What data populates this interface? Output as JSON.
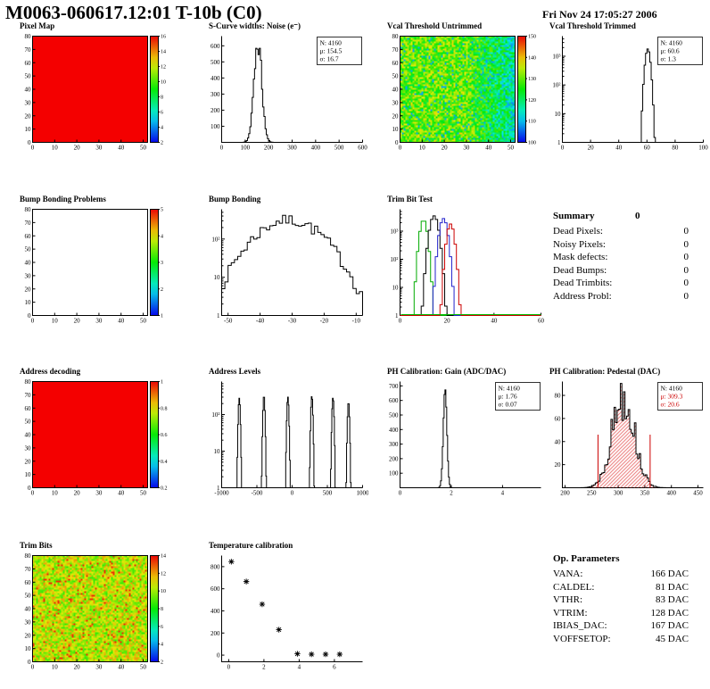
{
  "header": {
    "title": "M0063-060617.12:01 T-10b (C0)",
    "date": "Fri Nov 24 17:05:27 2006"
  },
  "summary": {
    "title": "Summary",
    "total": "0",
    "rows": [
      {
        "label": "Dead Pixels:",
        "value": "0"
      },
      {
        "label": "Noisy Pixels:",
        "value": "0"
      },
      {
        "label": "Mask defects:",
        "value": "0"
      },
      {
        "label": "Dead Bumps:",
        "value": "0"
      },
      {
        "label": "Dead Trimbits:",
        "value": "0"
      },
      {
        "label": "Address Probl:",
        "value": "0"
      }
    ]
  },
  "op_parameters": {
    "title": "Op. Parameters",
    "rows": [
      {
        "label": "VANA:",
        "value": "166 DAC"
      },
      {
        "label": "CALDEL:",
        "value": "81 DAC"
      },
      {
        "label": "VTHR:",
        "value": "83 DAC"
      },
      {
        "label": "VTRIM:",
        "value": "128 DAC"
      },
      {
        "label": "IBIAS_DAC:",
        "value": "167 DAC"
      },
      {
        "label": "VOFFSETOP:",
        "value": "45 DAC"
      }
    ]
  },
  "chart_data": [
    {
      "id": "pixel-map",
      "title": "Pixel Map",
      "type": "heatmap",
      "fill": "uniform",
      "color": "#f40000",
      "x_range": [
        0,
        52
      ],
      "y_range": [
        0,
        80
      ],
      "x_ticks": [
        0,
        10,
        20,
        30,
        40,
        50
      ],
      "y_ticks": [
        0,
        10,
        20,
        30,
        40,
        50,
        60,
        70,
        80
      ],
      "colorbar_ticks": [
        2,
        4,
        6,
        8,
        10,
        12,
        14,
        16
      ]
    },
    {
      "id": "scurve-noise",
      "title": "S-Curve widths: Noise (e⁻)",
      "type": "histogram",
      "x_range": [
        0,
        600
      ],
      "x_ticks": [
        0,
        100,
        200,
        300,
        400,
        500,
        600
      ],
      "y_range": [
        0,
        660
      ],
      "y_ticks": [
        100,
        200,
        300,
        400,
        500,
        600
      ],
      "bins": 120,
      "series": [
        {
          "color": "#000000",
          "mean": 154.5,
          "sigma": 16.7,
          "peak": 620,
          "ragged": 0.12,
          "seed": 11
        }
      ],
      "stats": {
        "rows": [
          {
            "text": "N: 4160",
            "color": "#000000"
          },
          {
            "text": "μ: 154.5",
            "color": "#000000"
          },
          {
            "text": "σ: 16.7",
            "color": "#000000"
          }
        ]
      }
    },
    {
      "id": "vcal-untrimmed",
      "title": "Vcal Threshold Untrimmed",
      "type": "heatmap",
      "fill": "noise",
      "noise": {
        "min": 0.42,
        "max": 0.78,
        "band_start": 0.55,
        "band_drop": 0.3,
        "speckle": 0.05,
        "speckle_v": 0.18,
        "seed": 5
      },
      "x_range": [
        0,
        52
      ],
      "y_range": [
        0,
        80
      ],
      "x_ticks": [
        0,
        10,
        20,
        30,
        40,
        50
      ],
      "y_ticks": [
        0,
        10,
        20,
        30,
        40,
        50,
        60,
        70,
        80
      ],
      "colorbar_ticks": [
        100,
        110,
        120,
        130,
        140,
        150
      ]
    },
    {
      "id": "vcal-trimmed",
      "title": "Vcal Threshold Trimmed",
      "type": "histogram",
      "ylog": true,
      "y_top": 5000,
      "x_range": [
        0,
        100
      ],
      "x_ticks": [
        0,
        20,
        40,
        60,
        80,
        100
      ],
      "bins": 100,
      "series": [
        {
          "color": "#000000",
          "mean": 60.6,
          "sigma": 1.3,
          "peak": 1800,
          "ragged": 0,
          "seed": 1
        }
      ],
      "stats": {
        "rows": [
          {
            "text": "N: 4160",
            "color": "#000000"
          },
          {
            "text": "μ: 60.6",
            "color": "#000000"
          },
          {
            "text": "σ: 1.3",
            "color": "#000000"
          }
        ]
      }
    },
    {
      "id": "bump-problems",
      "title": "Bump Bonding Problems",
      "type": "heatmap",
      "fill": "empty",
      "x_range": [
        0,
        52
      ],
      "y_range": [
        0,
        80
      ],
      "x_ticks": [
        0,
        10,
        20,
        30,
        40,
        50
      ],
      "y_ticks": [
        0,
        10,
        20,
        30,
        40,
        50,
        60,
        70,
        80
      ],
      "colorbar_ticks": [
        1,
        2,
        3,
        4,
        5
      ]
    },
    {
      "id": "bump-bonding",
      "title": "Bump Bonding",
      "type": "histogram",
      "ylog": true,
      "y_top": 600,
      "x_range": [
        -52,
        -8
      ],
      "x_ticks": [
        -50,
        -40,
        -30,
        -20,
        -10
      ],
      "bins": 44,
      "series": [
        {
          "color": "#000000",
          "mean": -31,
          "sigma": 7.5,
          "peak": 320,
          "ragged": 0.35,
          "seed": 7
        }
      ]
    },
    {
      "id": "trimbit-test",
      "title": "Trim Bit Test",
      "type": "histogram",
      "ylog": true,
      "y_top": 6000,
      "x_range": [
        0,
        60
      ],
      "x_ticks": [
        0,
        20,
        40,
        60
      ],
      "bins": 60,
      "baseline_color": "#00bb00",
      "series": [
        {
          "color": "#00aa00",
          "mean": 10,
          "sigma": 1.1,
          "peak": 2500,
          "ragged": 0,
          "seed": 2
        },
        {
          "color": "#000000",
          "mean": 14.5,
          "sigma": 1.3,
          "peak": 3500,
          "ragged": 0,
          "seed": 3
        },
        {
          "color": "#2222cc",
          "mean": 18.5,
          "sigma": 1.2,
          "peak": 2800,
          "ragged": 0,
          "seed": 4
        },
        {
          "color": "#cc0000",
          "mean": 21.5,
          "sigma": 1.1,
          "peak": 1800,
          "ragged": 0,
          "seed": 5
        }
      ]
    },
    {
      "id": "address-decoding",
      "title": "Address decoding",
      "type": "heatmap",
      "fill": "uniform",
      "color": "#f40000",
      "x_range": [
        0,
        52
      ],
      "y_range": [
        0,
        80
      ],
      "x_ticks": [
        0,
        10,
        20,
        30,
        40,
        50
      ],
      "y_ticks": [
        0,
        10,
        20,
        30,
        40,
        50,
        60,
        70,
        80
      ],
      "colorbar_ticks": [
        0.2,
        0.4,
        0.6,
        0.8,
        1
      ]
    },
    {
      "id": "address-levels",
      "title": "Address Levels",
      "type": "histogram",
      "ylog": true,
      "y_top": 800,
      "x_range": [
        -1000,
        1000
      ],
      "x_ticks": [
        -1000,
        -500,
        0,
        500,
        1000
      ],
      "bins": 220,
      "series": [
        {
          "color": "#000000",
          "mean": -750,
          "sigma": 10,
          "peak": 280,
          "ragged": 0,
          "seed": 1
        },
        {
          "color": "#000000",
          "mean": -400,
          "sigma": 10,
          "peak": 330,
          "ragged": 0,
          "seed": 1
        },
        {
          "color": "#000000",
          "mean": -60,
          "sigma": 10,
          "peak": 300,
          "ragged": 0,
          "seed": 1
        },
        {
          "color": "#000000",
          "mean": 280,
          "sigma": 10,
          "peak": 320,
          "ragged": 0,
          "seed": 1
        },
        {
          "color": "#000000",
          "mean": 580,
          "sigma": 10,
          "peak": 290,
          "ragged": 0,
          "seed": 1
        },
        {
          "color": "#000000",
          "mean": 800,
          "sigma": 10,
          "peak": 220,
          "ragged": 0,
          "seed": 1
        }
      ]
    },
    {
      "id": "ph-gain",
      "title": "PH Calibration: Gain (ADC/DAC)",
      "type": "histogram",
      "x_range": [
        0,
        5.5
      ],
      "x_ticks": [
        0,
        2,
        4
      ],
      "y_range": [
        0,
        730
      ],
      "y_ticks": [
        100,
        200,
        300,
        400,
        500,
        600,
        700
      ],
      "bins": 160,
      "series": [
        {
          "color": "#000000",
          "mean": 1.76,
          "sigma": 0.07,
          "peak": 680,
          "ragged": 0,
          "seed": 9
        }
      ],
      "stats": {
        "rows": [
          {
            "text": "N: 4160",
            "color": "#000000"
          },
          {
            "text": "μ: 1.76",
            "color": "#000000"
          },
          {
            "text": "σ: 0.07",
            "color": "#000000"
          }
        ]
      }
    },
    {
      "id": "ph-pedestal",
      "title": "PH Calibration: Pedestal (DAC)",
      "type": "histogram",
      "x_range": [
        195,
        460
      ],
      "x_ticks": [
        200,
        250,
        300,
        350,
        400,
        450
      ],
      "y_range": [
        0,
        92
      ],
      "y_ticks": [
        20,
        40,
        60,
        80
      ],
      "bins": 90,
      "series": [
        {
          "color": "#000000",
          "mean": 309.3,
          "sigma": 20.6,
          "peak": 82,
          "ragged": 0.3,
          "seed": 13,
          "fill": "hatch-red"
        }
      ],
      "vlines": [
        {
          "x": 262,
          "h": 46,
          "color": "#cc0000"
        },
        {
          "x": 360,
          "h": 46,
          "color": "#cc0000"
        }
      ],
      "stats": {
        "rows": [
          {
            "text": "N: 4160",
            "color": "#000000"
          },
          {
            "text": "μ: 309.3",
            "color": "#cc0000"
          },
          {
            "text": "σ: 20.6",
            "color": "#cc0000"
          }
        ]
      }
    },
    {
      "id": "trim-bits",
      "title": "Trim Bits",
      "type": "heatmap",
      "fill": "noise",
      "noise": {
        "min": 0.55,
        "max": 0.85,
        "band_start": 1,
        "band_drop": 0,
        "speckle": 0.04,
        "speckle_v": 0.95,
        "seed": 21
      },
      "x_range": [
        0,
        52
      ],
      "y_range": [
        0,
        80
      ],
      "x_ticks": [
        0,
        10,
        20,
        30,
        40,
        50
      ],
      "y_ticks": [
        0,
        10,
        20,
        30,
        40,
        50,
        60,
        70,
        80
      ],
      "colorbar_ticks": [
        2,
        4,
        6,
        8,
        10,
        12,
        14
      ]
    },
    {
      "id": "temperature",
      "title": "Temperature calibration",
      "type": "scatter",
      "x_range": [
        -0.4,
        7.6
      ],
      "x_ticks": [
        0,
        2,
        4,
        6
      ],
      "y_range": [
        -60,
        900
      ],
      "y_ticks": [
        0,
        200,
        400,
        600,
        800
      ],
      "marker": "asterisk",
      "color": "#000000",
      "points": [
        [
          0.15,
          845
        ],
        [
          1.0,
          665
        ],
        [
          1.9,
          460
        ],
        [
          2.85,
          230
        ],
        [
          3.9,
          12
        ],
        [
          4.7,
          8
        ],
        [
          5.5,
          8
        ],
        [
          6.3,
          8
        ]
      ]
    }
  ]
}
